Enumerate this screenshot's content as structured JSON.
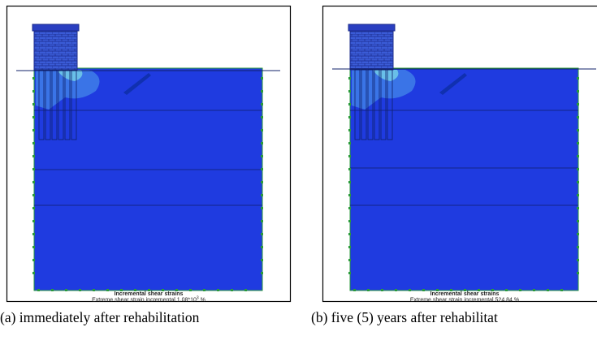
{
  "panels": [
    {
      "title": "Incremental shear strains",
      "extreme": {
        "text": "Extreme shear strain incremental 1.08*10",
        "sup": "3",
        "unit": "%"
      },
      "caption": "(a) immediately after rehabilitation"
    },
    {
      "title": "Incremental shear strains",
      "extreme": {
        "text": "Extreme shear strain incremental 524.84 %"
      },
      "caption": "(b) five (5) years after rehabilitat"
    }
  ]
}
